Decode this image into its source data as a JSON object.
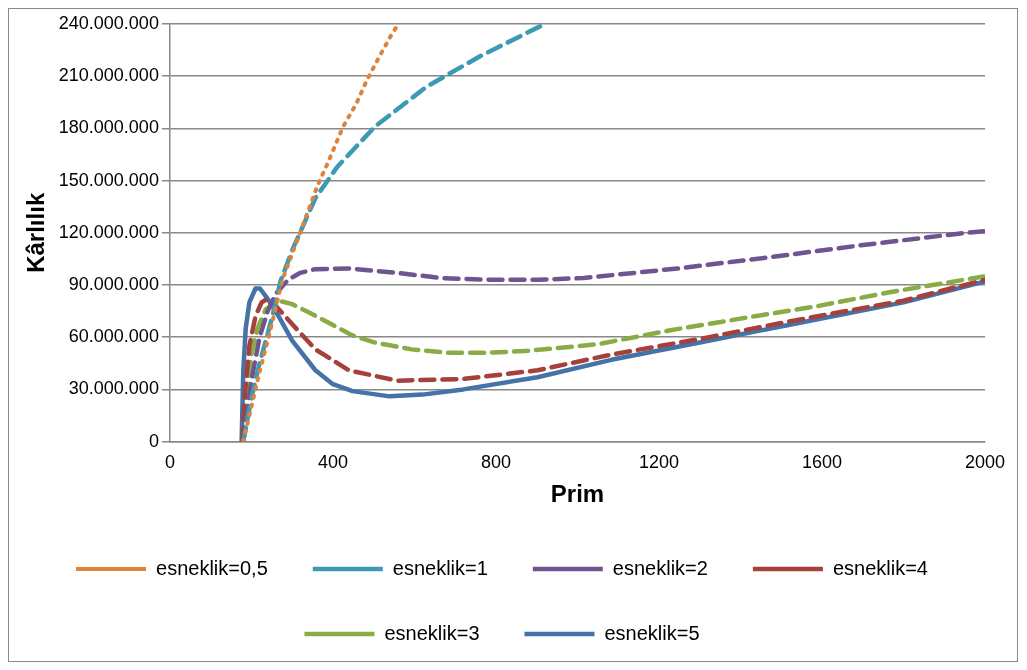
{
  "chart_data": {
    "type": "line",
    "xlabel": "Prim",
    "ylabel": "Kârlılık",
    "xlim": [
      0,
      2000
    ],
    "xticks": [
      0,
      400,
      800,
      1200,
      1600,
      2000
    ],
    "ylim": [
      0,
      240000000
    ],
    "yticks": [
      {
        "value": 0,
        "label": "0"
      },
      {
        "value": 30000000,
        "label": "30.000.000"
      },
      {
        "value": 60000000,
        "label": "60.000.000"
      },
      {
        "value": 90000000,
        "label": "90.000.000"
      },
      {
        "value": 120000000,
        "label": "120.000.000"
      },
      {
        "value": 150000000,
        "label": "150.000.000"
      },
      {
        "value": 180000000,
        "label": "180.000.000"
      },
      {
        "value": 210000000,
        "label": "210.000.000"
      },
      {
        "value": 240000000,
        "label": "240.000.000"
      }
    ],
    "grid": "y",
    "legend": "bottom",
    "marker": "none",
    "series": [
      {
        "name": "esneklik=0,5",
        "color": "#e0833a",
        "line_style": "dotted",
        "x": [
          180,
          200,
          220,
          240,
          260,
          276,
          321,
          362,
          389,
          425,
          457,
          484,
          511,
          544,
          561
        ],
        "values": [
          0,
          20000000,
          40000000,
          58000000,
          77000000,
          93000000,
          121000000,
          147000000,
          161000000,
          181000000,
          194000000,
          208000000,
          220000000,
          234000000,
          240000000
        ]
      },
      {
        "name": "esneklik=1",
        "color": "#3d9ab4",
        "line_style": "dashed",
        "x": [
          180,
          200,
          220,
          240,
          260,
          271,
          302,
          357,
          411,
          503,
          630,
          765,
          920
        ],
        "values": [
          0,
          25000000,
          45000000,
          62000000,
          80000000,
          92000000,
          111000000,
          140000000,
          158000000,
          181000000,
          204000000,
          222000000,
          240000000
        ]
      },
      {
        "name": "esneklik=2",
        "color": "#6f558f",
        "line_style": "dashed",
        "x": [
          180,
          200,
          220,
          240,
          260,
          290,
          320,
          354,
          439,
          557,
          666,
          783,
          902,
          1015,
          1246,
          1473,
          1701,
          1935,
          2000
        ],
        "values": [
          0,
          35000000,
          60000000,
          75000000,
          85000000,
          93000000,
          97000000,
          99000000,
          99500000,
          97000000,
          94000000,
          93000000,
          93000000,
          94000000,
          99500000,
          106000000,
          113000000,
          119500000,
          121000000
        ]
      },
      {
        "name": "esneklik=4",
        "color": "#a6403c",
        "line_style": "dashed",
        "x": [
          178,
          185,
          195,
          210,
          225,
          239,
          260,
          302,
          357,
          439,
          557,
          720,
          902,
          1083,
          1300,
          1518,
          1800,
          2000
        ],
        "values": [
          0,
          30000000,
          55000000,
          72000000,
          80000000,
          82000000,
          78000000,
          67000000,
          53000000,
          41000000,
          35000000,
          36000000,
          41000000,
          50000000,
          59000000,
          69000000,
          81000000,
          93000000
        ]
      },
      {
        "name": "esneklik=3",
        "color": "#8aac46",
        "line_style": "dashed",
        "x": [
          180,
          190,
          200,
          215,
          235,
          267,
          300,
          343,
          448,
          502,
          593,
          683,
          774,
          870,
          1051,
          1228,
          1409,
          1592,
          1769,
          2000
        ],
        "values": [
          0,
          30000000,
          50000000,
          65000000,
          76000000,
          81000000,
          79000000,
          74000000,
          61000000,
          57000000,
          53000000,
          51000000,
          51000000,
          52000000,
          56000000,
          64000000,
          71000000,
          78000000,
          86000000,
          95000000
        ]
      },
      {
        "name": "esneklik=5",
        "color": "#4572a7",
        "line_style": "solid",
        "x": [
          176,
          180,
          186,
          195,
          210,
          221,
          240,
          267,
          300,
          357,
          400,
          448,
          539,
          620,
          720,
          902,
          1083,
          1300,
          1518,
          1800,
          2000
        ],
        "values": [
          0,
          40000000,
          65000000,
          80000000,
          88000000,
          88000000,
          82000000,
          72000000,
          58000000,
          41000000,
          33000000,
          29000000,
          26000000,
          27000000,
          30000000,
          37000000,
          47000000,
          57000000,
          67000000,
          80000000,
          92000000
        ]
      }
    ]
  }
}
